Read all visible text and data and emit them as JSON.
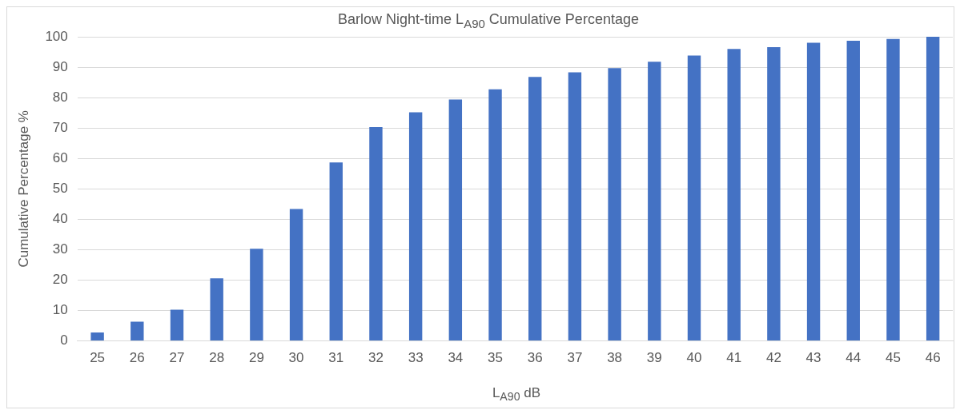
{
  "chart_data": {
    "type": "bar",
    "title": "Barlow Night-time L$_{A90}$ Cumulative Percentage",
    "xlabel": "L$_{A90}$ dB",
    "ylabel": "Cumulative Percentage %",
    "categories": [
      "25",
      "26",
      "27",
      "28",
      "29",
      "30",
      "31",
      "32",
      "33",
      "34",
      "35",
      "36",
      "37",
      "38",
      "39",
      "40",
      "41",
      "42",
      "43",
      "44",
      "45",
      "46"
    ],
    "values": [
      2.8,
      6.3,
      10.3,
      20.6,
      30.3,
      43.4,
      58.7,
      70.3,
      75.2,
      79.4,
      82.7,
      86.8,
      88.3,
      89.7,
      91.8,
      93.8,
      96,
      96.6,
      98,
      98.7,
      99.3,
      100
    ],
    "color": "#4472c4",
    "ylim": [
      0,
      100
    ],
    "yticks": [
      0,
      10,
      20,
      30,
      40,
      50,
      60,
      70,
      80,
      90,
      100
    ],
    "grid": "y",
    "legend": false
  }
}
